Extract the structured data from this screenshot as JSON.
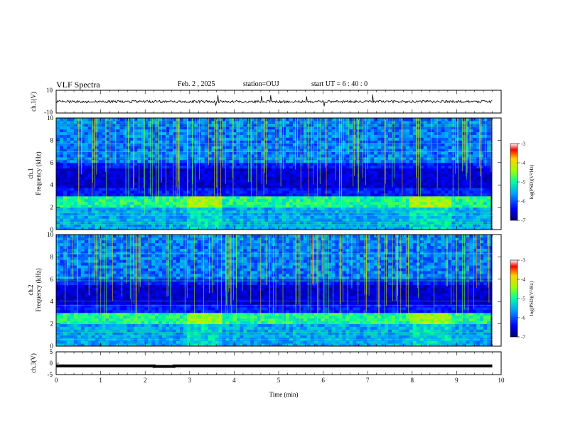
{
  "header": {
    "title": "VLF Spectra",
    "date": "Feb. 2 , 2025",
    "station": "station=OUJ",
    "start": "start UT = 6 : 40 : 0"
  },
  "colors": {
    "spectrogram_low": "#000080",
    "spectrogram_mid": "#2a7cf0",
    "spectrogram_high": "#ffd400",
    "spectrogram_peak": "#ff0000",
    "trace": "#000000"
  },
  "chart_data": [
    {
      "type": "line",
      "panel": "ch1-waveform",
      "ylabel": "ch.1(V)",
      "ylim": [
        -10,
        10
      ],
      "yticks": [
        "10",
        "-10"
      ],
      "baseline": 0,
      "x": [
        0,
        10
      ],
      "xlim": [
        0,
        10
      ]
    },
    {
      "type": "heatmap",
      "panel": "ch1-spectrogram",
      "ylabel": "ch.1\nFrequency (kHz)",
      "ylim": [
        0,
        10
      ],
      "yticks": [
        "0",
        "2",
        "4",
        "6",
        "8",
        "10"
      ],
      "xlim": [
        0,
        10
      ],
      "colorbar": {
        "label": "log(PSD)(V²/Hz)",
        "ticks": [
          "-3",
          "-4",
          "-5",
          "-6",
          "-7"
        ],
        "range": [
          -7,
          -3
        ]
      },
      "features": [
        {
          "name": "band",
          "freq_khz": [
            2.0,
            3.0
          ]
        },
        {
          "name": "enhancement",
          "time_min": [
            2.9,
            3.7
          ]
        },
        {
          "name": "enhancement",
          "time_min": [
            7.9,
            8.9
          ]
        }
      ]
    },
    {
      "type": "heatmap",
      "panel": "ch2-spectrogram",
      "ylabel": "ch.2\nFrequency (kHz)",
      "ylim": [
        0,
        10
      ],
      "yticks": [
        "0",
        "2",
        "4",
        "6",
        "8",
        "10"
      ],
      "xlim": [
        0,
        10
      ],
      "colorbar": {
        "label": "log(PSD)(V²/Hz)",
        "ticks": [
          "-3",
          "-4",
          "-5",
          "-6",
          "-7"
        ],
        "range": [
          -7,
          -3
        ]
      },
      "features": [
        {
          "name": "band",
          "freq_khz": [
            2.0,
            3.0
          ]
        },
        {
          "name": "enhancement",
          "time_min": [
            2.9,
            3.7
          ]
        },
        {
          "name": "enhancement",
          "time_min": [
            7.9,
            8.9
          ]
        }
      ]
    },
    {
      "type": "line",
      "panel": "ch3-waveform",
      "ylabel": "ch.3(V)",
      "ylim": [
        -5,
        5
      ],
      "yticks": [
        "5",
        "0",
        "-5"
      ],
      "x": [
        0,
        2.2,
        2.2,
        2.65,
        2.65,
        9.8
      ],
      "y": [
        -1.2,
        -1.2,
        -1.4,
        -1.4,
        -1.2,
        -1.2
      ],
      "xlim": [
        0,
        10
      ],
      "xlabel": "Time (min)",
      "xticks": [
        "0",
        "1",
        "2",
        "3",
        "4",
        "5",
        "6",
        "7",
        "8",
        "9",
        "10"
      ]
    }
  ]
}
